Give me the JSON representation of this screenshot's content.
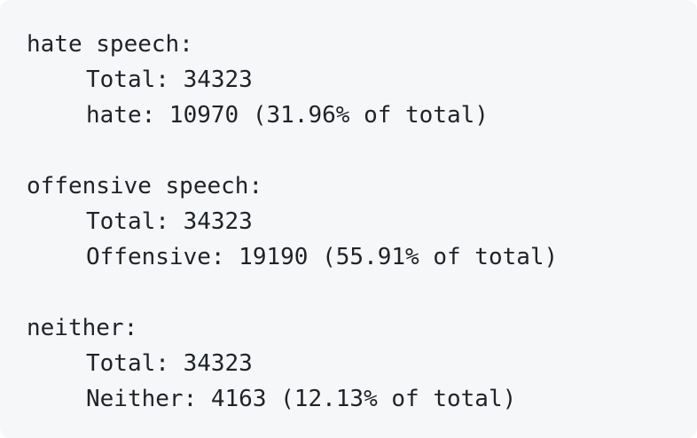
{
  "sections": [
    {
      "header": "hate speech:",
      "total_line": "Total: 34323",
      "detail_line": "hate: 10970 (31.96% of total)"
    },
    {
      "header": "offensive speech:",
      "total_line": "Total: 34323",
      "detail_line": "Offensive: 19190 (55.91% of total)"
    },
    {
      "header": "neither:",
      "total_line": "Total: 34323",
      "detail_line": "Neither: 4163 (12.13% of total)"
    }
  ]
}
